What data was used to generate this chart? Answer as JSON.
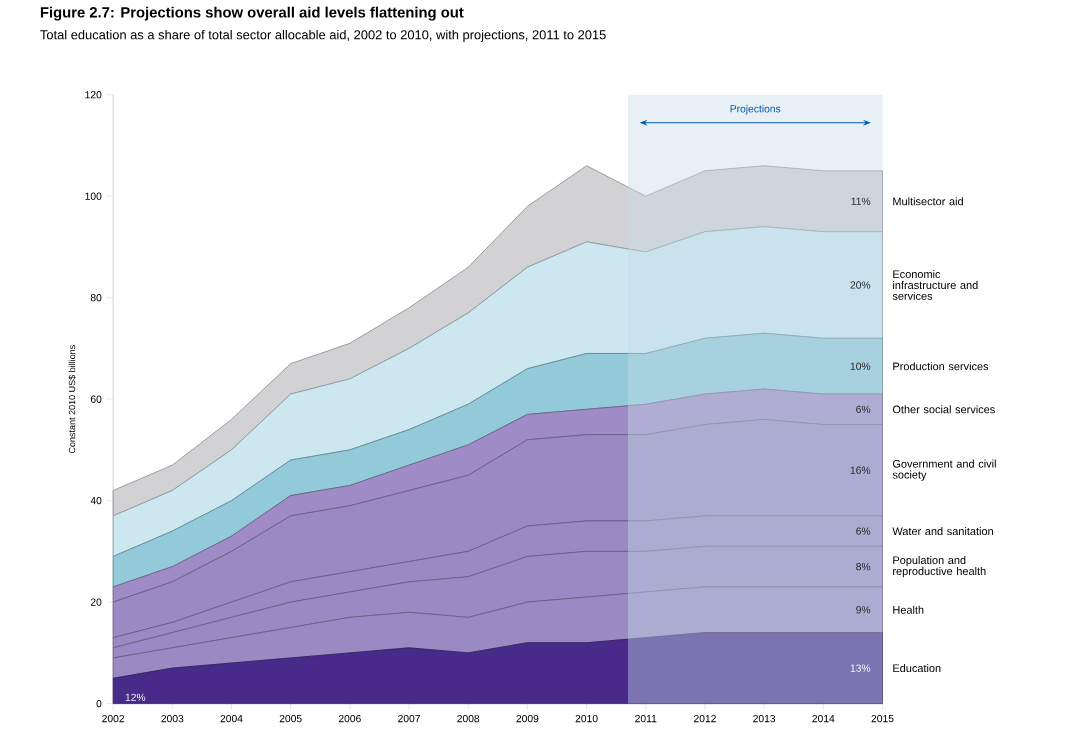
{
  "chart_data": {
    "type": "area",
    "stacked": true,
    "title": "Figure 2.7: Projections show overall aid levels flattening out",
    "subtitle": "Total education as a share of total sector allocable aid, 2002 to 2010, with projections, 2011 to 2015",
    "ylabel": "Constant 2010 US$ billions",
    "x": [
      2002,
      2003,
      2004,
      2005,
      2006,
      2007,
      2008,
      2009,
      2010,
      2011,
      2012,
      2013,
      2014,
      2015
    ],
    "series": [
      {
        "name": "Education",
        "color": "#472a8a",
        "values": [
          5,
          7,
          8,
          9,
          10,
          11,
          10,
          12,
          12,
          13,
          14,
          14,
          14,
          14
        ]
      },
      {
        "name": "Health",
        "color": "#9a8ac4",
        "values": [
          4,
          4,
          5,
          6,
          7,
          7,
          7,
          8,
          9,
          9,
          9,
          9,
          9,
          9
        ]
      },
      {
        "name": "Population and reproductive health",
        "color": "#9a8ac4",
        "values": [
          2,
          3,
          4,
          5,
          5,
          6,
          8,
          9,
          9,
          8,
          8,
          8,
          8,
          8
        ]
      },
      {
        "name": "Water and sanitation",
        "color": "#9a8ac4",
        "values": [
          2,
          2,
          3,
          4,
          4,
          4,
          5,
          6,
          6,
          6,
          6,
          6,
          6,
          6
        ]
      },
      {
        "name": "Government and civil society",
        "color": "#9a8ac4",
        "values": [
          7,
          8,
          10,
          13,
          13,
          14,
          15,
          17,
          17,
          17,
          18,
          19,
          18,
          18
        ]
      },
      {
        "name": "Other social services",
        "color": "#9f8cc6",
        "values": [
          3,
          3,
          3,
          4,
          4,
          5,
          6,
          5,
          5,
          6,
          6,
          6,
          6,
          6
        ]
      },
      {
        "name": "Production services",
        "color": "#92cad9",
        "values": [
          6,
          7,
          7,
          7,
          7,
          7,
          8,
          9,
          11,
          10,
          11,
          11,
          11,
          11
        ]
      },
      {
        "name": "Economic infrastructure and services",
        "color": "#cde7f1",
        "values": [
          8,
          8,
          10,
          13,
          14,
          16,
          18,
          20,
          22,
          20,
          21,
          21,
          21,
          21
        ]
      },
      {
        "name": "Multisector aid",
        "color": "#d2d2d5",
        "values": [
          5,
          5,
          6,
          6,
          7,
          8,
          9,
          12,
          15,
          11,
          12,
          12,
          12,
          12
        ]
      }
    ],
    "xlim": [
      2002,
      2015
    ],
    "ylim": [
      0,
      120
    ],
    "xticks": [
      2002,
      2003,
      2004,
      2005,
      2006,
      2007,
      2008,
      2009,
      2010,
      2011,
      2012,
      2013,
      2014,
      2015
    ],
    "yticks": [
      0,
      20,
      40,
      60,
      80,
      100,
      120
    ],
    "bands": [
      {
        "axis": "x",
        "from": 2010.7,
        "to": 2015,
        "label": "Projections",
        "color": "#c6dbe8"
      }
    ],
    "annotations": [
      "12%",
      "13%",
      "9%",
      "8%",
      "6%",
      "16%",
      "6%",
      "10%",
      "20%",
      "11%"
    ],
    "legend": false
  }
}
